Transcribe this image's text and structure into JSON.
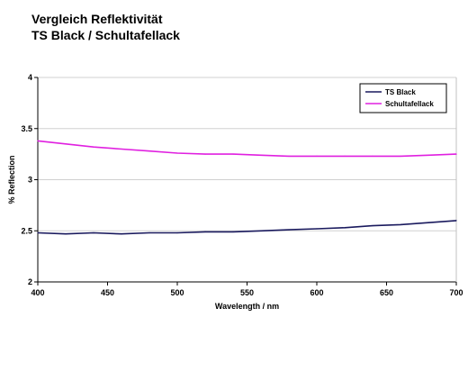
{
  "chart_data": {
    "type": "line",
    "title": "Vergleich Reflektivität",
    "subtitle": "TS Black / Schultafellack",
    "xlabel": "Wavelength / nm",
    "ylabel": "% Reflection",
    "xlim": [
      400,
      700
    ],
    "ylim": [
      2,
      4
    ],
    "xticks": [
      "400",
      "450",
      "500",
      "550",
      "600",
      "650",
      "700"
    ],
    "yticks": [
      "2",
      "2.5",
      "3",
      "3.5",
      "4"
    ],
    "grid": true,
    "legend_position": "top-right",
    "series": [
      {
        "name": "TS Black",
        "color": "#1a1a5e",
        "x": [
          400,
          420,
          440,
          460,
          480,
          500,
          520,
          540,
          560,
          580,
          600,
          620,
          640,
          660,
          680,
          700
        ],
        "y": [
          2.48,
          2.47,
          2.48,
          2.47,
          2.48,
          2.48,
          2.49,
          2.49,
          2.5,
          2.51,
          2.52,
          2.53,
          2.55,
          2.56,
          2.58,
          2.6
        ]
      },
      {
        "name": "Schultafellack",
        "color": "#e020e0",
        "x": [
          400,
          420,
          440,
          460,
          480,
          500,
          520,
          540,
          560,
          580,
          600,
          620,
          640,
          660,
          680,
          700
        ],
        "y": [
          3.38,
          3.35,
          3.32,
          3.3,
          3.28,
          3.26,
          3.25,
          3.25,
          3.24,
          3.23,
          3.23,
          3.23,
          3.23,
          3.23,
          3.24,
          3.25
        ]
      }
    ]
  }
}
